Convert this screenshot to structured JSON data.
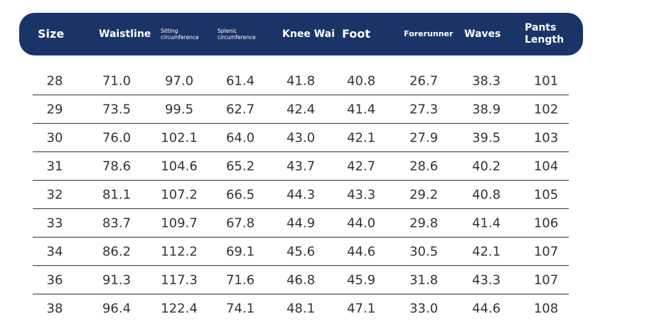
{
  "table": {
    "headers": [
      "Size",
      "Waistline",
      "Sitting circumference",
      "Splenic circumference",
      "Knee Wai",
      "Foot",
      "Forerunner",
      "Waves",
      "Pants Length"
    ],
    "rows": [
      [
        "28",
        "71.0",
        "97.0",
        "61.4",
        "41.8",
        "40.8",
        "26.7",
        "38.3",
        "101"
      ],
      [
        "29",
        "73.5",
        "99.5",
        "62.7",
        "42.4",
        "41.4",
        "27.3",
        "38.9",
        "102"
      ],
      [
        "30",
        "76.0",
        "102.1",
        "64.0",
        "43.0",
        "42.1",
        "27.9",
        "39.5",
        "103"
      ],
      [
        "31",
        "78.6",
        "104.6",
        "65.2",
        "43.7",
        "42.7",
        "28.6",
        "40.2",
        "104"
      ],
      [
        "32",
        "81.1",
        "107.2",
        "66.5",
        "44.3",
        "43.3",
        "29.2",
        "40.8",
        "105"
      ],
      [
        "33",
        "83.7",
        "109.7",
        "67.8",
        "44.9",
        "44.0",
        "29.8",
        "41.4",
        "106"
      ],
      [
        "34",
        "86.2",
        "112.2",
        "69.1",
        "45.6",
        "44.6",
        "30.5",
        "42.1",
        "107"
      ],
      [
        "36",
        "91.3",
        "117.3",
        "71.6",
        "46.8",
        "45.9",
        "31.8",
        "43.3",
        "107"
      ],
      [
        "38",
        "96.4",
        "122.4",
        "74.1",
        "48.1",
        "47.1",
        "33.0",
        "44.6",
        "108"
      ]
    ]
  }
}
